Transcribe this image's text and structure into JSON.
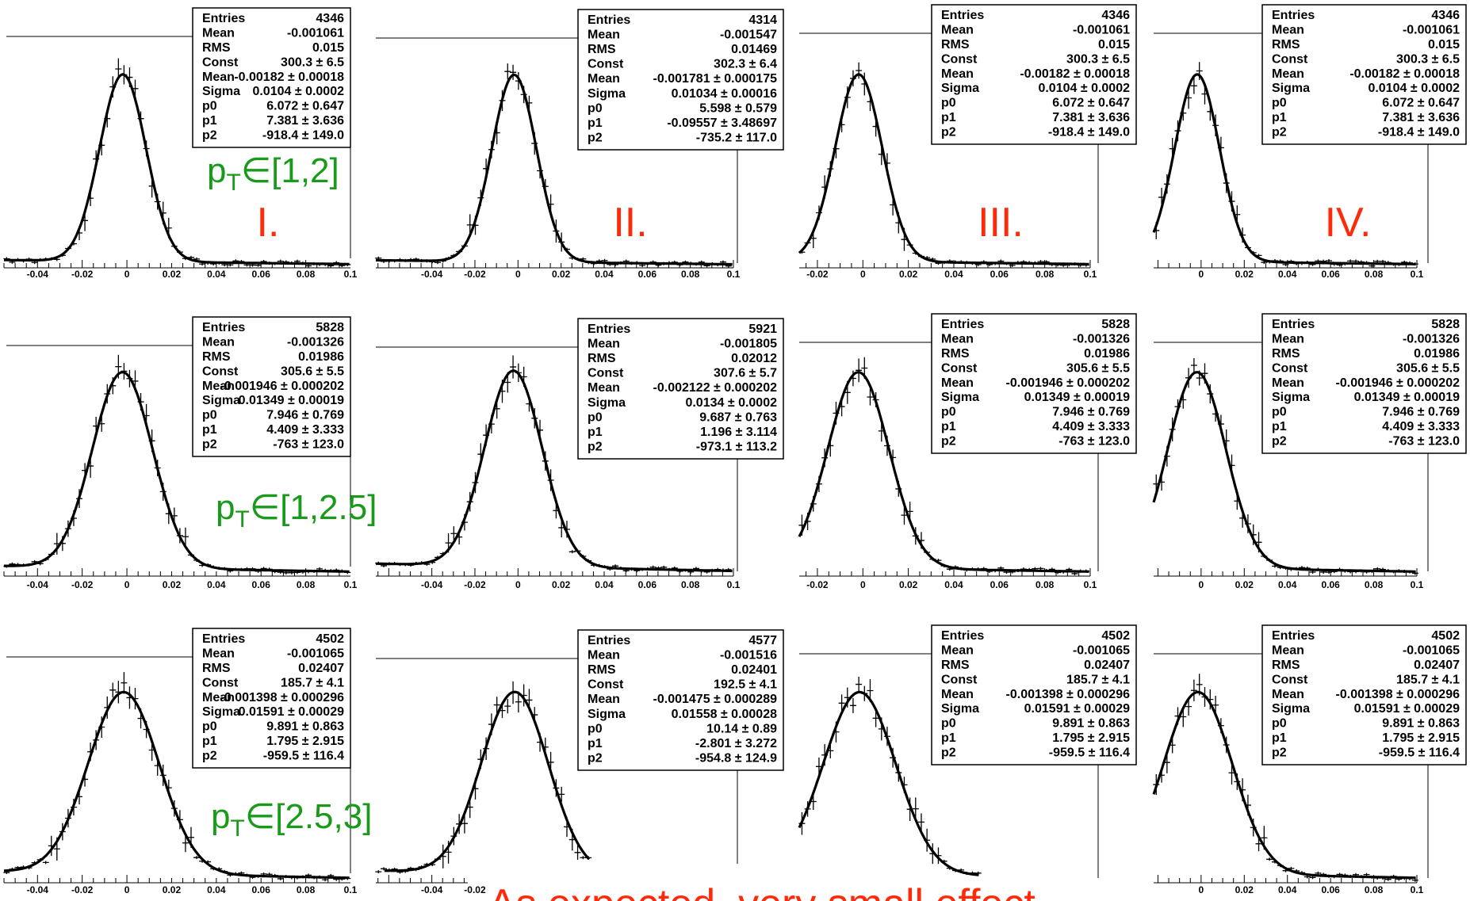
{
  "chart_data": [
    {
      "type": "histogram-gaussian-fit",
      "column": "I",
      "row": "pT-1-2",
      "x": {
        "ticks": [
          "-0.04",
          "-0.02",
          "0",
          "0.02",
          "0.04",
          "0.06",
          "0.08",
          "0.1"
        ]
      },
      "stats": [
        [
          "Entries",
          "4346"
        ],
        [
          "Mean",
          "-0.001061"
        ],
        [
          "RMS",
          "0.015"
        ],
        [
          "Const",
          "300.3 ± 6.5"
        ],
        [
          "Mean",
          "-0.00182 ± 0.00018"
        ],
        [
          "Sigma",
          "0.0104 ± 0.0002"
        ],
        [
          "p0",
          "6.072 ± 0.647"
        ],
        [
          "p1",
          "7.381 ± 3.636"
        ],
        [
          "p2",
          "-918.4 ± 149.0"
        ]
      ],
      "fit": {
        "mean": -0.00182,
        "sigma": 0.0104,
        "const": 300.3
      }
    },
    {
      "type": "histogram-gaussian-fit",
      "column": "II",
      "row": "pT-1-2",
      "x": {
        "ticks": [
          "-0.04",
          "-0.02",
          "0",
          "0.02",
          "0.04",
          "0.06",
          "0.08",
          "0.1"
        ]
      },
      "stats": [
        [
          "Entries",
          "4314"
        ],
        [
          "Mean",
          "-0.001547"
        ],
        [
          "RMS",
          "0.01469"
        ],
        [
          "Const",
          "302.3 ± 6.4"
        ],
        [
          "Mean",
          "-0.001781 ± 0.000175"
        ],
        [
          "Sigma",
          "0.01034 ± 0.00016"
        ],
        [
          "p0",
          "5.598 ± 0.579"
        ],
        [
          "p1",
          "-0.09557 ± 3.48697"
        ],
        [
          "p2",
          "-735.2 ± 117.0"
        ]
      ],
      "fit": {
        "mean": -0.001781,
        "sigma": 0.01034,
        "const": 302.3
      }
    },
    {
      "type": "histogram-gaussian-fit",
      "column": "III",
      "row": "pT-1-2",
      "x": {
        "ticks": [
          "-0.02",
          "0",
          "0.02",
          "0.04",
          "0.06",
          "0.08",
          "0.1"
        ]
      },
      "stats": [
        [
          "Entries",
          "4346"
        ],
        [
          "Mean",
          "-0.001061"
        ],
        [
          "RMS",
          "0.015"
        ],
        [
          "Const",
          "300.3 ± 6.5"
        ],
        [
          "Mean",
          "-0.00182 ± 0.00018"
        ],
        [
          "Sigma",
          "0.0104 ± 0.0002"
        ],
        [
          "p0",
          "6.072 ± 0.647"
        ],
        [
          "p1",
          "7.381 ± 3.636"
        ],
        [
          "p2",
          "-918.4 ± 149.0"
        ]
      ],
      "fit": {
        "mean": -0.00182,
        "sigma": 0.0104,
        "const": 300.3
      }
    },
    {
      "type": "histogram-gaussian-fit",
      "column": "IV",
      "row": "pT-1-2",
      "x": {
        "ticks": [
          "0",
          "0.02",
          "0.04",
          "0.06",
          "0.08",
          "0.1"
        ]
      },
      "stats": [
        [
          "Entries",
          "4346"
        ],
        [
          "Mean",
          "-0.001061"
        ],
        [
          "RMS",
          "0.015"
        ],
        [
          "Const",
          "300.3 ± 6.5"
        ],
        [
          "Mean",
          "-0.00182 ± 0.00018"
        ],
        [
          "Sigma",
          "0.0104 ± 0.0002"
        ],
        [
          "p0",
          "6.072 ± 0.647"
        ],
        [
          "p1",
          "7.381 ± 3.636"
        ],
        [
          "p2",
          "-918.4 ± 149.0"
        ]
      ],
      "fit": {
        "mean": -0.00182,
        "sigma": 0.0104,
        "const": 300.3
      }
    },
    {
      "type": "histogram-gaussian-fit",
      "column": "I",
      "row": "pT-1-2.5",
      "x": {
        "ticks": [
          "-0.04",
          "-0.02",
          "0",
          "0.02",
          "0.04",
          "0.06",
          "0.08",
          "0.1"
        ]
      },
      "stats": [
        [
          "Entries",
          "5828"
        ],
        [
          "Mean",
          "-0.001326"
        ],
        [
          "RMS",
          "0.01986"
        ],
        [
          "Const",
          "305.6 ± 5.5"
        ],
        [
          "Mean",
          "-0.001946 ± 0.000202"
        ],
        [
          "Sigma",
          "0.01349 ± 0.00019"
        ],
        [
          "p0",
          "7.946 ± 0.769"
        ],
        [
          "p1",
          "4.409 ± 3.333"
        ],
        [
          "p2",
          "-763 ± 123.0"
        ]
      ],
      "fit": {
        "mean": -0.001946,
        "sigma": 0.01349,
        "const": 305.6
      }
    },
    {
      "type": "histogram-gaussian-fit",
      "column": "II",
      "row": "pT-1-2.5",
      "x": {
        "ticks": [
          "-0.04",
          "-0.02",
          "0",
          "0.02",
          "0.04",
          "0.06",
          "0.08",
          "0.1"
        ]
      },
      "stats": [
        [
          "Entries",
          "5921"
        ],
        [
          "Mean",
          "-0.001805"
        ],
        [
          "RMS",
          "0.02012"
        ],
        [
          "Const",
          "307.6 ± 5.7"
        ],
        [
          "Mean",
          "-0.002122 ± 0.000202"
        ],
        [
          "Sigma",
          "0.0134 ± 0.0002"
        ],
        [
          "p0",
          "9.687 ± 0.763"
        ],
        [
          "p1",
          "1.196 ± 3.114"
        ],
        [
          "p2",
          "-973.1 ± 113.2"
        ]
      ],
      "fit": {
        "mean": -0.002122,
        "sigma": 0.0134,
        "const": 307.6
      }
    },
    {
      "type": "histogram-gaussian-fit",
      "column": "III",
      "row": "pT-1-2.5",
      "x": {
        "ticks": [
          "-0.02",
          "0",
          "0.02",
          "0.04",
          "0.06",
          "0.08",
          "0.1"
        ]
      },
      "stats": [
        [
          "Entries",
          "5828"
        ],
        [
          "Mean",
          "-0.001326"
        ],
        [
          "RMS",
          "0.01986"
        ],
        [
          "Const",
          "305.6 ± 5.5"
        ],
        [
          "Mean",
          "-0.001946 ± 0.000202"
        ],
        [
          "Sigma",
          "0.01349 ± 0.00019"
        ],
        [
          "p0",
          "7.946 ± 0.769"
        ],
        [
          "p1",
          "4.409 ± 3.333"
        ],
        [
          "p2",
          "-763 ± 123.0"
        ]
      ],
      "fit": {
        "mean": -0.001946,
        "sigma": 0.01349,
        "const": 305.6
      }
    },
    {
      "type": "histogram-gaussian-fit",
      "column": "IV",
      "row": "pT-1-2.5",
      "x": {
        "ticks": [
          "0",
          "0.02",
          "0.04",
          "0.06",
          "0.08",
          "0.1"
        ]
      },
      "stats": [
        [
          "Entries",
          "5828"
        ],
        [
          "Mean",
          "-0.001326"
        ],
        [
          "RMS",
          "0.01986"
        ],
        [
          "Const",
          "305.6 ± 5.5"
        ],
        [
          "Mean",
          "-0.001946 ± 0.000202"
        ],
        [
          "Sigma",
          "0.01349 ± 0.00019"
        ],
        [
          "p0",
          "7.946 ± 0.769"
        ],
        [
          "p1",
          "4.409 ± 3.333"
        ],
        [
          "p2",
          "-763 ± 123.0"
        ]
      ],
      "fit": {
        "mean": -0.001946,
        "sigma": 0.01349,
        "const": 305.6
      }
    },
    {
      "type": "histogram-gaussian-fit",
      "column": "I",
      "row": "pT-2.5-3",
      "x": {
        "ticks": [
          "-0.04",
          "-0.02",
          "0",
          "0.02",
          "0.04",
          "0.06",
          "0.08",
          "0.1"
        ]
      },
      "stats": [
        [
          "Entries",
          "4502"
        ],
        [
          "Mean",
          "-0.001065"
        ],
        [
          "RMS",
          "0.02407"
        ],
        [
          "Const",
          "185.7 ± 4.1"
        ],
        [
          "Mean",
          "-0.001398 ± 0.000296"
        ],
        [
          "Sigma",
          "0.01591 ± 0.00029"
        ],
        [
          "p0",
          "9.891 ± 0.863"
        ],
        [
          "p1",
          "1.795 ± 2.915"
        ],
        [
          "p2",
          "-959.5 ± 116.4"
        ]
      ],
      "fit": {
        "mean": -0.001398,
        "sigma": 0.01591,
        "const": 185.7
      }
    },
    {
      "type": "histogram-gaussian-fit",
      "column": "II",
      "row": "pT-2.5-3",
      "x": {
        "ticks": [
          "-0.04",
          "-0.02"
        ]
      },
      "stats": [
        [
          "Entries",
          "4577"
        ],
        [
          "Mean",
          "-0.001516"
        ],
        [
          "RMS",
          "0.02401"
        ],
        [
          "Const",
          "192.5 ± 4.1"
        ],
        [
          "Mean",
          "-0.001475 ± 0.000289"
        ],
        [
          "Sigma",
          "0.01558 ± 0.00028"
        ],
        [
          "p0",
          "10.14 ± 0.89"
        ],
        [
          "p1",
          "-2.801 ± 3.272"
        ],
        [
          "p2",
          "-954.8 ± 124.9"
        ]
      ],
      "fit": {
        "mean": -0.001475,
        "sigma": 0.01558,
        "const": 192.5
      }
    },
    {
      "type": "histogram-gaussian-fit",
      "column": "III",
      "row": "pT-2.5-3",
      "x": {
        "ticks": []
      },
      "stats": [
        [
          "Entries",
          "4502"
        ],
        [
          "Mean",
          "-0.001065"
        ],
        [
          "RMS",
          "0.02407"
        ],
        [
          "Const",
          "185.7 ± 4.1"
        ],
        [
          "Mean",
          "-0.001398 ± 0.000296"
        ],
        [
          "Sigma",
          "0.01591 ± 0.00029"
        ],
        [
          "p0",
          "9.891 ± 0.863"
        ],
        [
          "p1",
          "1.795 ± 2.915"
        ],
        [
          "p2",
          "-959.5 ± 116.4"
        ]
      ],
      "fit": {
        "mean": -0.001398,
        "sigma": 0.01591,
        "const": 185.7
      }
    },
    {
      "type": "histogram-gaussian-fit",
      "column": "IV",
      "row": "pT-2.5-3",
      "x": {
        "ticks": [
          "0",
          "0.02",
          "0.04",
          "0.06",
          "0.08",
          "0.1"
        ]
      },
      "stats": [
        [
          "Entries",
          "4502"
        ],
        [
          "Mean",
          "-0.001065"
        ],
        [
          "RMS",
          "0.02407"
        ],
        [
          "Const",
          "185.7 ± 4.1"
        ],
        [
          "Mean",
          "-0.001398 ± 0.000296"
        ],
        [
          "Sigma",
          "0.01591 ± 0.00029"
        ],
        [
          "p0",
          "9.891 ± 0.863"
        ],
        [
          "p1",
          "1.795 ± 2.915"
        ],
        [
          "p2",
          "-959.5 ± 116.4"
        ]
      ],
      "fit": {
        "mean": -0.001398,
        "sigma": 0.01591,
        "const": 185.7
      }
    }
  ],
  "annotations": {
    "columns": [
      "I.",
      "II.",
      "III.",
      "IV."
    ],
    "pt_rows": [
      {
        "prefix": "p",
        "sub": "T",
        "range": "∈[1,2]"
      },
      {
        "prefix": "p",
        "sub": "T",
        "range": "∈[1,2.5]"
      },
      {
        "prefix": "p",
        "sub": "T",
        "range": "∈[2.5,3]"
      }
    ],
    "conclusion": "As expected, very small effect"
  },
  "colors": {
    "roman": "#ff2a0a",
    "pt_label": "#1a9a1a",
    "curve": "#000000"
  }
}
